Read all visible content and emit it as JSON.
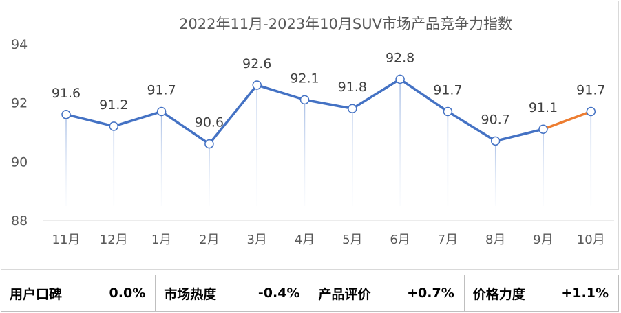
{
  "chart_data": {
    "type": "line",
    "title": "2022年11月-2023年10月SUV市场产品竞争力指数",
    "categories": [
      "11月",
      "12月",
      "1月",
      "2月",
      "3月",
      "4月",
      "5月",
      "6月",
      "7月",
      "8月",
      "9月",
      "10月"
    ],
    "values": [
      91.6,
      91.2,
      91.7,
      90.6,
      92.6,
      92.1,
      91.8,
      92.8,
      91.7,
      90.7,
      91.1,
      91.7
    ],
    "labels": [
      "91.6",
      "91.2",
      "91.7",
      "90.6",
      "92.6",
      "92.1",
      "91.8",
      "92.8",
      "91.7",
      "90.7",
      "91.1",
      "91.7"
    ],
    "yticks": [
      "94",
      "92",
      "90",
      "88"
    ],
    "ylim": [
      88,
      94
    ],
    "line_color": "#4472c4",
    "highlight_color": "#ed7d31",
    "grid": false
  },
  "footer": [
    {
      "label": "用户口碑",
      "value": "0.0%"
    },
    {
      "label": "市场热度",
      "value": "-0.4%"
    },
    {
      "label": "产品评价",
      "value": "+0.7%"
    },
    {
      "label": "价格力度",
      "value": "+1.1%"
    }
  ]
}
